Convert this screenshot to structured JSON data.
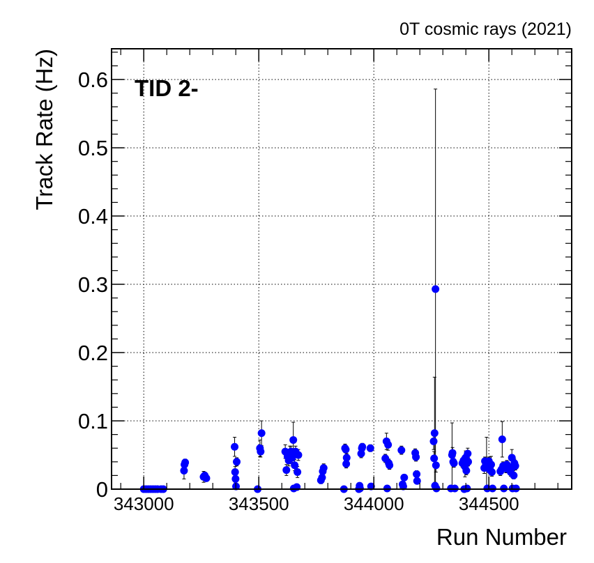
{
  "chart_data": {
    "type": "scatter",
    "title": "0T cosmic rays (2021)",
    "annotation": "TID 2-",
    "xlabel": "Run Number",
    "ylabel": "Track Rate (Hz)",
    "xlim": [
      342860,
      344860
    ],
    "ylim": [
      0,
      0.645
    ],
    "x_ticks": [
      343000,
      343500,
      344000,
      344500
    ],
    "x_tick_labels": [
      "343000",
      "343500",
      "344000",
      "344500"
    ],
    "y_ticks": [
      0,
      0.1,
      0.2,
      0.3,
      0.4,
      0.5,
      0.6
    ],
    "y_tick_labels": [
      "0",
      "0.1",
      "0.2",
      "0.3",
      "0.4",
      "0.5",
      "0.6"
    ],
    "grid": true,
    "marker_color": "#0000ff",
    "errorbar_color": "#000000",
    "series": [
      {
        "points": [
          {
            "x": 343000,
            "y": 0,
            "err": 0
          },
          {
            "x": 343010,
            "y": 0,
            "err": 0
          },
          {
            "x": 343020,
            "y": 0,
            "err": 0
          },
          {
            "x": 343030,
            "y": 0,
            "err": 0
          },
          {
            "x": 343040,
            "y": 0,
            "err": 0
          },
          {
            "x": 343050,
            "y": 0,
            "err": 0
          },
          {
            "x": 343060,
            "y": 0,
            "err": 0
          },
          {
            "x": 343075,
            "y": 0,
            "err": 0
          },
          {
            "x": 343085,
            "y": 0,
            "err": 0
          },
          {
            "x": 343175,
            "y": 0.027,
            "err": 0.012
          },
          {
            "x": 343177,
            "y": 0.036,
            "err": 0.006
          },
          {
            "x": 343180,
            "y": 0.039,
            "err": 0.005
          },
          {
            "x": 343260,
            "y": 0.018,
            "err": 0.008
          },
          {
            "x": 343265,
            "y": 0.02,
            "err": 0.005
          },
          {
            "x": 343272,
            "y": 0.016,
            "err": 0.004
          },
          {
            "x": 343395,
            "y": 0.062,
            "err": 0.014
          },
          {
            "x": 343397,
            "y": 0.025,
            "err": 0.008
          },
          {
            "x": 343399,
            "y": 0.015,
            "err": 0.006
          },
          {
            "x": 343401,
            "y": 0.004,
            "err": 0.003
          },
          {
            "x": 343404,
            "y": 0.04,
            "err": 0.006
          },
          {
            "x": 343495,
            "y": 0.0,
            "err": 0
          },
          {
            "x": 343505,
            "y": 0.06,
            "err": 0.012
          },
          {
            "x": 343508,
            "y": 0.055,
            "err": 0.008
          },
          {
            "x": 343512,
            "y": 0.082,
            "err": 0.018
          },
          {
            "x": 343615,
            "y": 0.055,
            "err": 0.01
          },
          {
            "x": 343620,
            "y": 0.028,
            "err": 0.008
          },
          {
            "x": 343625,
            "y": 0.048,
            "err": 0.008
          },
          {
            "x": 343630,
            "y": 0.042,
            "err": 0.008
          },
          {
            "x": 343635,
            "y": 0.054,
            "err": 0.009
          },
          {
            "x": 343640,
            "y": 0.055,
            "err": 0.008
          },
          {
            "x": 343645,
            "y": 0.046,
            "err": 0.009
          },
          {
            "x": 343650,
            "y": 0.072,
            "err": 0.026
          },
          {
            "x": 343652,
            "y": 0.001,
            "err": 0
          },
          {
            "x": 343656,
            "y": 0.035,
            "err": 0.008
          },
          {
            "x": 343660,
            "y": 0.055,
            "err": 0.008
          },
          {
            "x": 343665,
            "y": 0.003,
            "err": 0.002
          },
          {
            "x": 343668,
            "y": 0.025,
            "err": 0.008
          },
          {
            "x": 343672,
            "y": 0.05,
            "err": 0.008
          },
          {
            "x": 343770,
            "y": 0.013,
            "err": 0.005
          },
          {
            "x": 343775,
            "y": 0.017,
            "err": 0.006
          },
          {
            "x": 343778,
            "y": 0.026,
            "err": 0.006
          },
          {
            "x": 343782,
            "y": 0.031,
            "err": 0.006
          },
          {
            "x": 343870,
            "y": 0.0,
            "err": 0
          },
          {
            "x": 343875,
            "y": 0.06,
            "err": 0.006
          },
          {
            "x": 343878,
            "y": 0.058,
            "err": 0.005
          },
          {
            "x": 343880,
            "y": 0.037,
            "err": 0.006
          },
          {
            "x": 343882,
            "y": 0.046,
            "err": 0.006
          },
          {
            "x": 343935,
            "y": 0.0,
            "err": 0
          },
          {
            "x": 343938,
            "y": 0.005,
            "err": 0.002
          },
          {
            "x": 343940,
            "y": 0.001,
            "err": 0
          },
          {
            "x": 343945,
            "y": 0.052,
            "err": 0.006
          },
          {
            "x": 343948,
            "y": 0.06,
            "err": 0.005
          },
          {
            "x": 343950,
            "y": 0.062,
            "err": 0.005
          },
          {
            "x": 343985,
            "y": 0.06,
            "err": 0.005
          },
          {
            "x": 343988,
            "y": 0.004,
            "err": 0.002
          },
          {
            "x": 344050,
            "y": 0.045,
            "err": 0.006
          },
          {
            "x": 344055,
            "y": 0.07,
            "err": 0.012
          },
          {
            "x": 344058,
            "y": 0.001,
            "err": 0
          },
          {
            "x": 344062,
            "y": 0.065,
            "err": 0.008
          },
          {
            "x": 344065,
            "y": 0.038,
            "err": 0.006
          },
          {
            "x": 344068,
            "y": 0.035,
            "err": 0.006
          },
          {
            "x": 344120,
            "y": 0.057,
            "err": 0.006
          },
          {
            "x": 344125,
            "y": 0.007,
            "err": 0.003
          },
          {
            "x": 344128,
            "y": 0.004,
            "err": 0.002
          },
          {
            "x": 344132,
            "y": 0.017,
            "err": 0.004
          },
          {
            "x": 344180,
            "y": 0.053,
            "err": 0.006
          },
          {
            "x": 344183,
            "y": 0.047,
            "err": 0.006
          },
          {
            "x": 344186,
            "y": 0.022,
            "err": 0.005
          },
          {
            "x": 344188,
            "y": 0.012,
            "err": 0.004
          },
          {
            "x": 344260,
            "y": 0.07,
            "err": 0.012
          },
          {
            "x": 344262,
            "y": 0.045,
            "err": 0.01
          },
          {
            "x": 344264,
            "y": 0.082,
            "err": 0.082
          },
          {
            "x": 344266,
            "y": 0.005,
            "err": 0.005
          },
          {
            "x": 344268,
            "y": 0.293,
            "err": 0.293
          },
          {
            "x": 344270,
            "y": 0.035,
            "err": 0.01
          },
          {
            "x": 344272,
            "y": 0.001,
            "err": 0
          },
          {
            "x": 344335,
            "y": 0.001,
            "err": 0
          },
          {
            "x": 344340,
            "y": 0.05,
            "err": 0.047
          },
          {
            "x": 344342,
            "y": 0.053,
            "err": 0.008
          },
          {
            "x": 344345,
            "y": 0.04,
            "err": 0.006
          },
          {
            "x": 344348,
            "y": 0.038,
            "err": 0.006
          },
          {
            "x": 344352,
            "y": 0.001,
            "err": 0
          },
          {
            "x": 344385,
            "y": 0.038,
            "err": 0.006
          },
          {
            "x": 344390,
            "y": 0.042,
            "err": 0.006
          },
          {
            "x": 344393,
            "y": 0.0,
            "err": 0
          },
          {
            "x": 344396,
            "y": 0.033,
            "err": 0.015
          },
          {
            "x": 344399,
            "y": 0.046,
            "err": 0.01
          },
          {
            "x": 344402,
            "y": 0.027,
            "err": 0.006
          },
          {
            "x": 344405,
            "y": 0.001,
            "err": 0
          },
          {
            "x": 344408,
            "y": 0.052,
            "err": 0.008
          },
          {
            "x": 344410,
            "y": 0.04,
            "err": 0.006
          },
          {
            "x": 344480,
            "y": 0.031,
            "err": 0.008
          },
          {
            "x": 344483,
            "y": 0.041,
            "err": 0.006
          },
          {
            "x": 344486,
            "y": 0.034,
            "err": 0.006
          },
          {
            "x": 344490,
            "y": 0.038,
            "err": 0.038
          },
          {
            "x": 344493,
            "y": 0.001,
            "err": 0
          },
          {
            "x": 344497,
            "y": 0.037,
            "err": 0.006
          },
          {
            "x": 344500,
            "y": 0.041,
            "err": 0.006
          },
          {
            "x": 344505,
            "y": 0.028,
            "err": 0.006
          },
          {
            "x": 344510,
            "y": 0.036,
            "err": 0.012
          },
          {
            "x": 344513,
            "y": 0.025,
            "err": 0.006
          },
          {
            "x": 344516,
            "y": 0.001,
            "err": 0
          },
          {
            "x": 344550,
            "y": 0.026,
            "err": 0.006
          },
          {
            "x": 344555,
            "y": 0.029,
            "err": 0.006
          },
          {
            "x": 344558,
            "y": 0.073,
            "err": 0.026
          },
          {
            "x": 344562,
            "y": 0.034,
            "err": 0.006
          },
          {
            "x": 344565,
            "y": 0.001,
            "err": 0
          },
          {
            "x": 344570,
            "y": 0.032,
            "err": 0.006
          },
          {
            "x": 344575,
            "y": 0.03,
            "err": 0.006
          },
          {
            "x": 344578,
            "y": 0.036,
            "err": 0.006
          },
          {
            "x": 344595,
            "y": 0.025,
            "err": 0.006
          },
          {
            "x": 344600,
            "y": 0.046,
            "err": 0.012
          },
          {
            "x": 344603,
            "y": 0.001,
            "err": 0
          },
          {
            "x": 344606,
            "y": 0.033,
            "err": 0.006
          },
          {
            "x": 344608,
            "y": 0.02,
            "err": 0.005
          },
          {
            "x": 344611,
            "y": 0.038,
            "err": 0.006
          },
          {
            "x": 344615,
            "y": 0.034,
            "err": 0.006
          },
          {
            "x": 344618,
            "y": 0.001,
            "err": 0
          }
        ]
      }
    ]
  }
}
